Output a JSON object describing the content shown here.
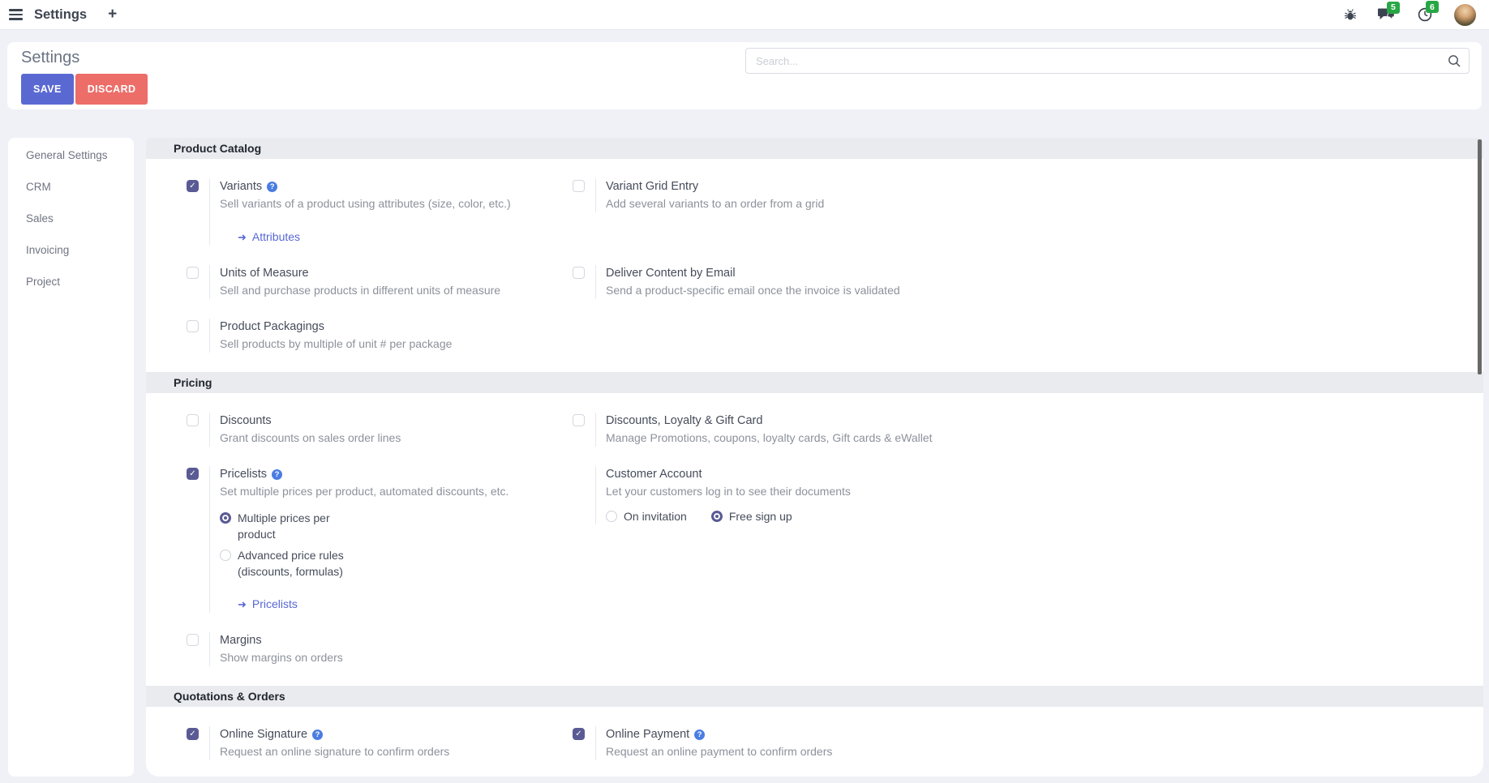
{
  "icons": {
    "plus": "+",
    "check": "✓",
    "arrow_right": "➜",
    "question": "?"
  },
  "colors": {
    "accent_purple": "#5a5a94",
    "save_button": "#5a69d2",
    "discard_button": "#ed6d68",
    "badge_green": "#28a745",
    "link_blue": "#5767d6",
    "help_blue": "#4a7de2"
  },
  "navbar": {
    "app_title": "Settings",
    "message_badge": "5",
    "activity_badge": "6"
  },
  "header": {
    "page_title": "Settings",
    "save_label": "SAVE",
    "discard_label": "DISCARD",
    "search_placeholder": "Search..."
  },
  "sidebar": {
    "items": [
      {
        "label": "General Settings"
      },
      {
        "label": "CRM"
      },
      {
        "label": "Sales"
      },
      {
        "label": "Invoicing"
      },
      {
        "label": "Project"
      }
    ]
  },
  "sections": [
    {
      "title": "Product Catalog",
      "rows": [
        [
          {
            "id": "variants",
            "checkbox": "checked",
            "title": "Variants",
            "help": true,
            "desc": "Sell variants of a product using attributes (size, color, etc.)",
            "link": "Attributes"
          },
          {
            "id": "variant-grid-entry",
            "checkbox": "unchecked",
            "title": "Variant Grid Entry",
            "desc": "Add several variants to an order from a grid"
          }
        ],
        [
          {
            "id": "units-of-measure",
            "checkbox": "unchecked",
            "title": "Units of Measure",
            "desc": "Sell and purchase products in different units of measure"
          },
          {
            "id": "deliver-content-by-email",
            "checkbox": "unchecked",
            "title": "Deliver Content by Email",
            "desc": "Send a product-specific email once the invoice is validated"
          }
        ],
        [
          {
            "id": "product-packagings",
            "checkbox": "unchecked",
            "title": "Product Packagings",
            "desc": "Sell products by multiple of unit # per package"
          },
          null
        ]
      ]
    },
    {
      "title": "Pricing",
      "rows": [
        [
          {
            "id": "discounts",
            "checkbox": "unchecked",
            "title": "Discounts",
            "desc": "Grant discounts on sales order lines"
          },
          {
            "id": "discounts-loyalty-gift-card",
            "checkbox": "unchecked",
            "title": "Discounts, Loyalty & Gift Card",
            "desc": "Manage Promotions, coupons, loyalty cards, Gift cards & eWallet"
          }
        ],
        [
          {
            "id": "pricelists",
            "checkbox": "checked",
            "title": "Pricelists",
            "help": true,
            "desc": "Set multiple prices per product, automated discounts, etc.",
            "radios": {
              "layout": "vertical",
              "options": [
                {
                  "label": "Multiple prices per product",
                  "selected": true
                },
                {
                  "label": "Advanced price rules (discounts, formulas)",
                  "selected": false
                }
              ]
            },
            "link": "Pricelists"
          },
          {
            "id": "customer-account",
            "checkbox": "none",
            "title": "Customer Account",
            "desc": "Let your customers log in to see their documents",
            "radios": {
              "layout": "inline",
              "options": [
                {
                  "label": "On invitation",
                  "selected": false
                },
                {
                  "label": "Free sign up",
                  "selected": true
                }
              ]
            }
          }
        ],
        [
          {
            "id": "margins",
            "checkbox": "unchecked",
            "title": "Margins",
            "desc": "Show margins on orders"
          },
          null
        ]
      ]
    },
    {
      "title": "Quotations & Orders",
      "rows": [
        [
          {
            "id": "online-signature",
            "checkbox": "checked",
            "title": "Online Signature",
            "help": true,
            "desc": "Request an online signature to confirm orders"
          },
          {
            "id": "online-payment",
            "checkbox": "checked",
            "title": "Online Payment",
            "help": true,
            "desc": "Request an online payment to confirm orders"
          }
        ]
      ]
    }
  ]
}
